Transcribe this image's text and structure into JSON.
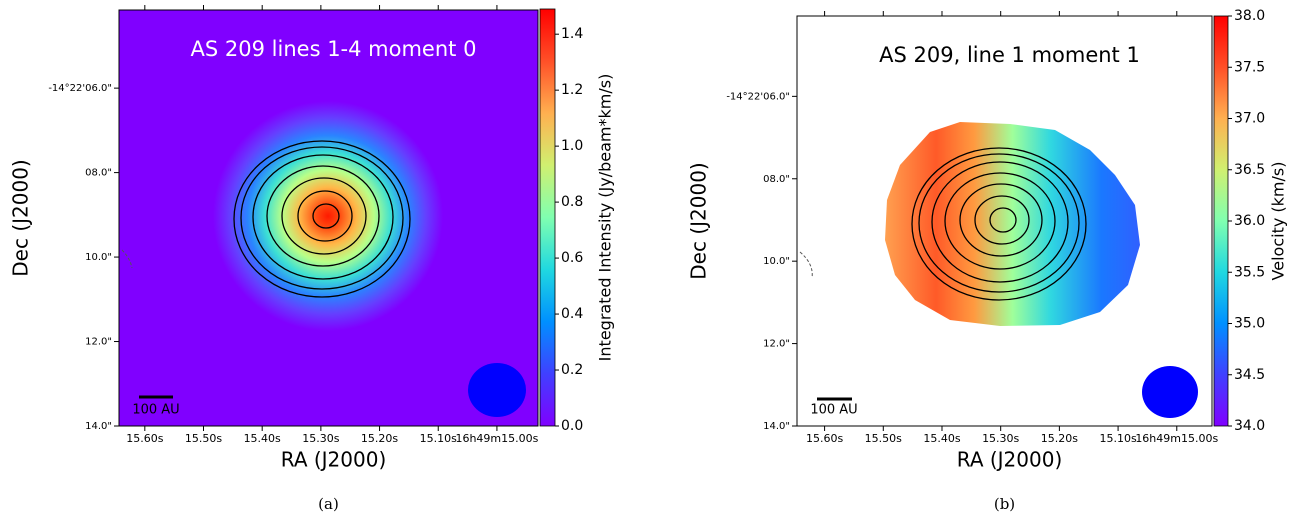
{
  "chart_data": [
    {
      "type": "heatmap",
      "title": "AS 209 lines 1-4 moment 0",
      "title_color": "#ffffff",
      "xlabel": "RA (J2000)",
      "ylabel": "Dec (J2000)",
      "xlim": [
        15.644,
        14.93
      ],
      "xticks": [
        {
          "value": 15.6,
          "label": "15.60s"
        },
        {
          "value": 15.5,
          "label": "15.50s"
        },
        {
          "value": 15.4,
          "label": "15.40s"
        },
        {
          "value": 15.3,
          "label": "15.30s"
        },
        {
          "value": 15.2,
          "label": "15.20s"
        },
        {
          "value": 15.1,
          "label": "15.10s"
        },
        {
          "value": 15.0,
          "label": "16h49m15.00s"
        }
      ],
      "ylim": [
        14.0,
        4.15
      ],
      "yticks": [
        {
          "value": 6.0,
          "label": "-14°22'06.0\""
        },
        {
          "value": 8.0,
          "label": "08.0\""
        },
        {
          "value": 10.0,
          "label": "10.0\""
        },
        {
          "value": 12.0,
          "label": "12.0\""
        },
        {
          "value": 14.0,
          "label": "14.0\""
        }
      ],
      "colorbar": {
        "label": "Integrated Intensity (Jy/beam*km/s)",
        "cmap": "rainbow",
        "lim": [
          0,
          1.49
        ],
        "ticks": [
          {
            "value": 0,
            "label": "0.0"
          },
          0.2,
          0.4,
          0.6,
          0.8,
          {
            "value": 1,
            "label": "1.0"
          },
          1.2,
          1.4
        ]
      },
      "scalebar_label": "100 AU",
      "caption": "(a)"
    },
    {
      "type": "heatmap",
      "title": "AS 209, line 1 moment 1",
      "title_color": "#000000",
      "xlabel": "RA (J2000)",
      "ylabel": "Dec (J2000)",
      "xlim": [
        15.647,
        14.94
      ],
      "xticks": [
        {
          "value": 15.6,
          "label": "15.60s"
        },
        {
          "value": 15.5,
          "label": "15.50s"
        },
        {
          "value": 15.4,
          "label": "15.40s"
        },
        {
          "value": 15.3,
          "label": "15.30s"
        },
        {
          "value": 15.2,
          "label": "15.20s"
        },
        {
          "value": 15.1,
          "label": "15.10s"
        },
        {
          "value": 15.0,
          "label": "16h49m15.00s"
        }
      ],
      "ylim": [
        14.0,
        4.05
      ],
      "yticks": [
        {
          "value": 6.0,
          "label": "-14°22'06.0\""
        },
        {
          "value": 8.0,
          "label": "08.0\""
        },
        {
          "value": 10.0,
          "label": "10.0\""
        },
        {
          "value": 12.0,
          "label": "12.0\""
        },
        {
          "value": 14.0,
          "label": "14.0\""
        }
      ],
      "colorbar": {
        "label": "Velocity (km/s)",
        "cmap": "rainbow",
        "lim": [
          34.0,
          38.0
        ],
        "ticks": [
          {
            "value": 34,
            "label": "34.0"
          },
          34.5,
          {
            "value": 35,
            "label": "35.0"
          },
          35.5,
          {
            "value": 36,
            "label": "36.0"
          },
          36.5,
          {
            "value": 37,
            "label": "37.0"
          },
          37.5,
          {
            "value": 38,
            "label": "38.0"
          }
        ]
      },
      "scalebar_label": "100 AU",
      "caption": "(b)"
    }
  ]
}
